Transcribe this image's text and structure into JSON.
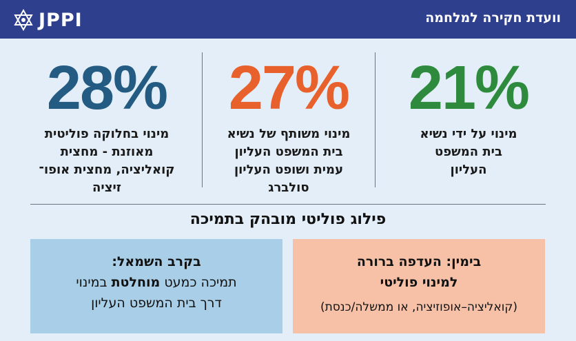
{
  "header": {
    "title": "וועדת חקירה למלחמה",
    "logo_text": "JPPI",
    "background": "#2e3f8e"
  },
  "stats": [
    {
      "value": "21%",
      "color": "#2e8b3e",
      "desc": [
        "מינוי על ידי נשיא",
        "בית המשפט",
        "העליון"
      ]
    },
    {
      "value": "27%",
      "color": "#e8612c",
      "desc": [
        "מינוי משותף של נשיא",
        "בית המשפט העליון",
        "עמית ושופט העליון",
        "סולברג"
      ]
    },
    {
      "value": "28%",
      "color": "#235b82",
      "desc": [
        "מינוי בחלוקה פוליטית",
        "מאוזנת - מחצית",
        "קואליציה, מחצית אופו־",
        "זיציה"
      ]
    }
  ],
  "subtitle": "פילוג פוליטי מובהק בתמיכה",
  "right_box": {
    "line1": "בימין: העדפה ברורה",
    "line2": "למינוי פוליטי",
    "line3": "(קואליציה–אופוזיציה, או ממשלה/כנסת)"
  },
  "left_box": {
    "heading": "בקרב השמאל:",
    "line2_pre": "תמיכה כמעט ",
    "line2_bold": "מוחלטת",
    "line2_post": " במינוי",
    "line3": "דרך בית המשפט העליון"
  }
}
